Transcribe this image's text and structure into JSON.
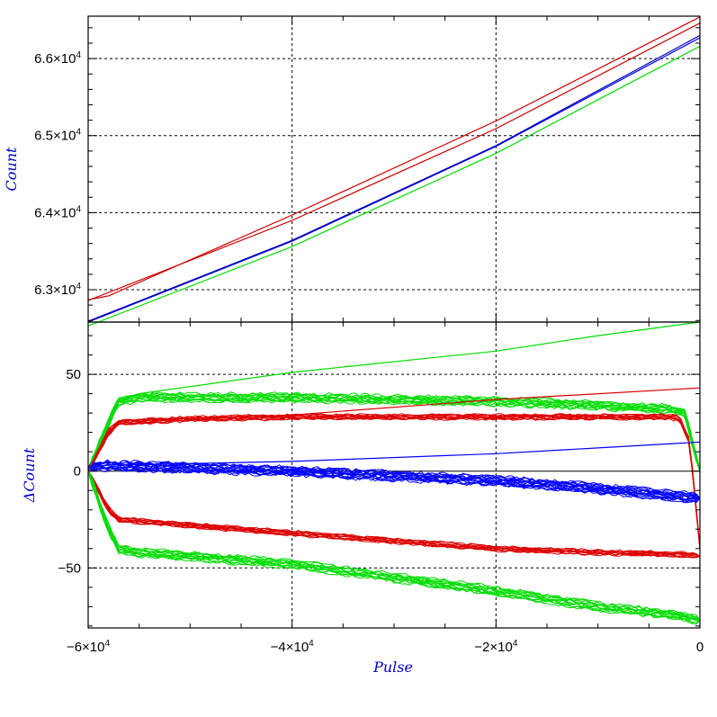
{
  "chart_data": [
    {
      "type": "line",
      "panel": "top",
      "xlim": [
        -60000,
        0
      ],
      "ylim": [
        62580,
        66550
      ],
      "grid": true,
      "ylabel": "Count",
      "xlabel": "",
      "y_tick_labels": [
        {
          "value": 63000,
          "mant": "6.3×10",
          "exp": "4"
        },
        {
          "value": 64000,
          "mant": "6.4×10",
          "exp": "4"
        },
        {
          "value": 65000,
          "mant": "6.5×10",
          "exp": "4"
        },
        {
          "value": 66000,
          "mant": "6.6×10",
          "exp": "4"
        }
      ],
      "series": [
        {
          "color": "#cc0000",
          "x": [
            -60000,
            -58000,
            -40000,
            -20000,
            0
          ],
          "y": [
            62870,
            62920,
            63970,
            65190,
            66540
          ]
        },
        {
          "color": "#cc0000",
          "x": [
            -60000,
            -40000,
            -20000,
            0
          ],
          "y": [
            62860,
            63900,
            65090,
            66460
          ]
        },
        {
          "color": "#0000ff",
          "x": [
            -60000,
            -40000,
            -20000,
            0
          ],
          "y": [
            62580,
            63630,
            64860,
            66270
          ]
        },
        {
          "color": "#0000aa",
          "x": [
            -60000,
            -40000,
            -20000,
            0
          ],
          "y": [
            62590,
            63640,
            64870,
            66300
          ]
        },
        {
          "color": "#00dd00",
          "x": [
            -60000,
            -40000,
            -20000,
            0
          ],
          "y": [
            62530,
            63560,
            64770,
            66160
          ]
        }
      ]
    },
    {
      "type": "line",
      "panel": "bottom",
      "xlim": [
        -60000,
        0
      ],
      "ylim": [
        -81,
        77
      ],
      "grid": true,
      "ylabel": "ΔCount",
      "xlabel": "Pulse",
      "y_tick_labels": [
        {
          "value": 50,
          "label": "50"
        },
        {
          "value": 0,
          "label": "0"
        },
        {
          "value": -50,
          "label": "−50"
        }
      ],
      "x_tick_labels": [
        {
          "value": -60000,
          "mant": "−6×10",
          "exp": "4"
        },
        {
          "value": -40000,
          "mant": "−4×10",
          "exp": "4"
        },
        {
          "value": -20000,
          "mant": "−2×10",
          "exp": "4"
        },
        {
          "value": 0,
          "mant": "0",
          "exp": ""
        }
      ],
      "bundles": [
        {
          "color": "#00dd00",
          "count": 12,
          "spread": 2.0,
          "x": [
            -60000,
            -58000,
            -57000,
            -55000,
            -40000,
            -20000,
            -10000,
            -3000,
            -1500,
            0
          ],
          "y": [
            0,
            25,
            36,
            38,
            38,
            36,
            34,
            32,
            30,
            0
          ]
        },
        {
          "color": "#dd0000",
          "count": 10,
          "spread": 1.2,
          "x": [
            -60000,
            -58000,
            -57000,
            -50000,
            -40000,
            -20000,
            -10000,
            -3000,
            -2000,
            -1000,
            0
          ],
          "y": [
            0,
            20,
            25,
            27,
            28,
            28,
            28,
            28,
            27,
            15,
            -40
          ]
        },
        {
          "color": "#0000ff",
          "count": 16,
          "spread": 2.2,
          "x": [
            -60000,
            -58000,
            -40000,
            -20000,
            -10000,
            0
          ],
          "y": [
            2,
            3,
            0,
            -5,
            -9,
            -14
          ]
        },
        {
          "color": "#dd0000",
          "count": 10,
          "spread": 1.2,
          "x": [
            -60000,
            -58000,
            -57000,
            -50000,
            -40000,
            -30000,
            -20000,
            -10000,
            -2000,
            0
          ],
          "y": [
            0,
            -20,
            -25,
            -28,
            -32,
            -36,
            -40,
            -42,
            -43,
            -44
          ]
        },
        {
          "color": "#00dd00",
          "count": 12,
          "spread": 2.0,
          "x": [
            -60000,
            -58000,
            -57000,
            -55000,
            -40000,
            -30000,
            -20000,
            -10000,
            -3000,
            0
          ],
          "y": [
            0,
            -30,
            -40,
            -42,
            -48,
            -55,
            -62,
            -70,
            -74,
            -77
          ]
        }
      ],
      "series": [
        {
          "color": "#00dd00",
          "x": [
            -60000,
            -58000,
            -57000,
            -55000,
            -40000,
            -20000,
            -10000,
            0
          ],
          "y": [
            0,
            27,
            37,
            40,
            51,
            62,
            70,
            77
          ]
        },
        {
          "color": "#dd0000",
          "x": [
            -60000,
            -58000,
            -57000,
            -40000,
            -20000,
            0
          ],
          "y": [
            0,
            22,
            26,
            29,
            37,
            43
          ]
        },
        {
          "color": "#0000ff",
          "x": [
            -60000,
            -58000,
            -40000,
            -20000,
            -10000,
            0
          ],
          "y": [
            2,
            3,
            5,
            9,
            12,
            15
          ]
        }
      ]
    }
  ]
}
